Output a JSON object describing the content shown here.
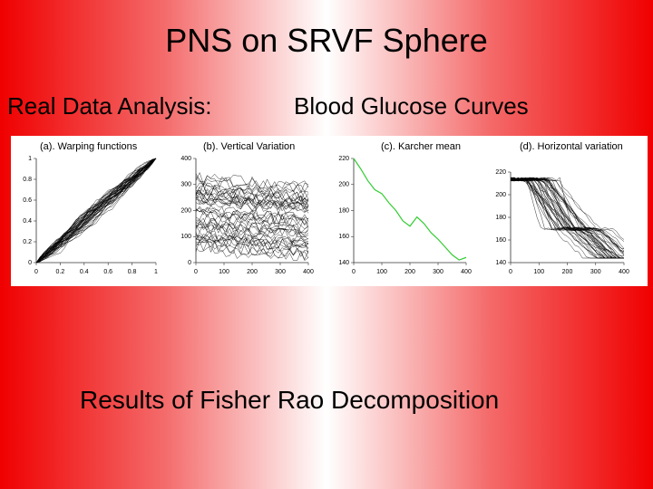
{
  "slide": {
    "title": "PNS on SRVF Sphere",
    "subtitle_left": "Real Data Analysis:",
    "subtitle_right": "Blood Glucose Curves",
    "caption": "Results of Fisher Rao Decomposition",
    "panels": [
      {
        "title": "(a). Warping functions",
        "xlim": [
          0,
          1
        ],
        "ylim": [
          0,
          1
        ],
        "xticks": [
          0,
          0.2,
          0.4,
          0.6,
          0.8,
          1
        ],
        "yticks": [
          0,
          0.2,
          0.4,
          0.6,
          0.8,
          1
        ]
      },
      {
        "title": "(b). Vertical Variation",
        "xlim": [
          0,
          400
        ],
        "ylim": [
          0,
          400
        ],
        "xticks": [
          0,
          100,
          200,
          300,
          400
        ],
        "yticks": [
          0,
          100,
          200,
          300,
          400
        ]
      },
      {
        "title": "(c). Karcher mean",
        "xlim": [
          0,
          400
        ],
        "ylim": [
          140,
          220
        ],
        "xticks": [
          0,
          100,
          200,
          300,
          400
        ],
        "yticks": [
          140,
          160,
          180,
          200,
          220
        ],
        "x": [
          0,
          25,
          50,
          75,
          100,
          125,
          150,
          175,
          200,
          225,
          250,
          275,
          300,
          325,
          350,
          375,
          400
        ],
        "values": [
          220,
          212,
          203,
          196,
          193,
          186,
          180,
          172,
          168,
          175,
          170,
          163,
          158,
          152,
          146,
          142,
          144
        ]
      },
      {
        "title": "(d). Horizontal variation",
        "xlim": [
          0,
          400
        ],
        "ylim": [
          140,
          220
        ],
        "xticks": [
          0,
          100,
          200,
          300,
          400
        ],
        "yticks": [
          140,
          160,
          180,
          200,
          220
        ]
      }
    ]
  }
}
